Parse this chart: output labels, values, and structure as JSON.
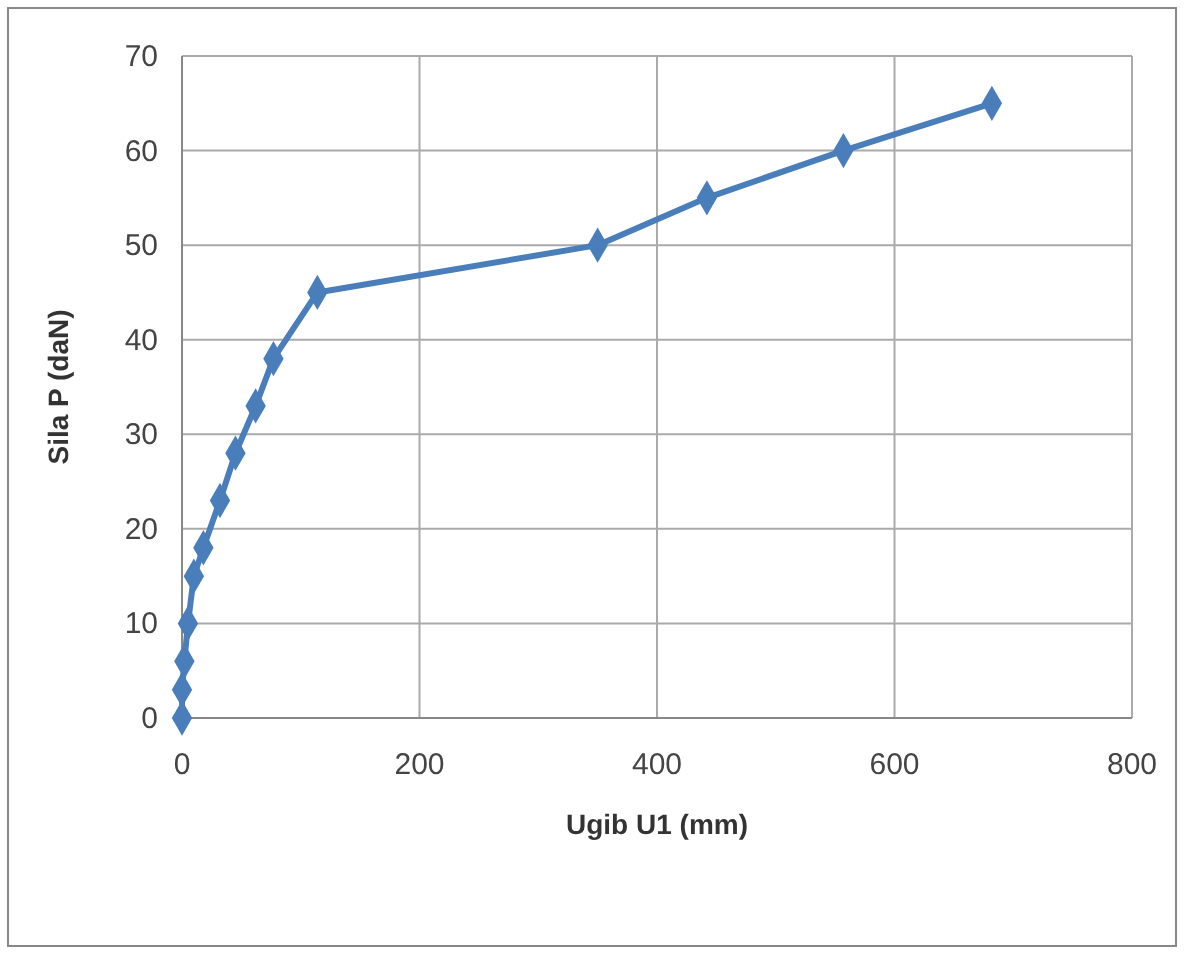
{
  "chart_data": {
    "type": "line",
    "xlabel": "Ugib U1 (mm)",
    "ylabel": "Sila P (daN)",
    "x": [
      0,
      0,
      2,
      5,
      10,
      18,
      32,
      45,
      62,
      77,
      114,
      350,
      442,
      557,
      682
    ],
    "series": [
      {
        "color": "#4a7ebb",
        "values": [
          0,
          3,
          6,
          10,
          15,
          18,
          23,
          28,
          33,
          38,
          45,
          50,
          55,
          60,
          65
        ]
      }
    ],
    "xlim": [
      0,
      800
    ],
    "xticks": [
      0,
      200,
      400,
      600,
      800
    ],
    "ylim": [
      0,
      70
    ],
    "yticks": [
      0,
      10,
      20,
      30,
      40,
      50,
      60,
      70
    ],
    "grid": true,
    "marker": "diamond",
    "line_style": "solid"
  }
}
